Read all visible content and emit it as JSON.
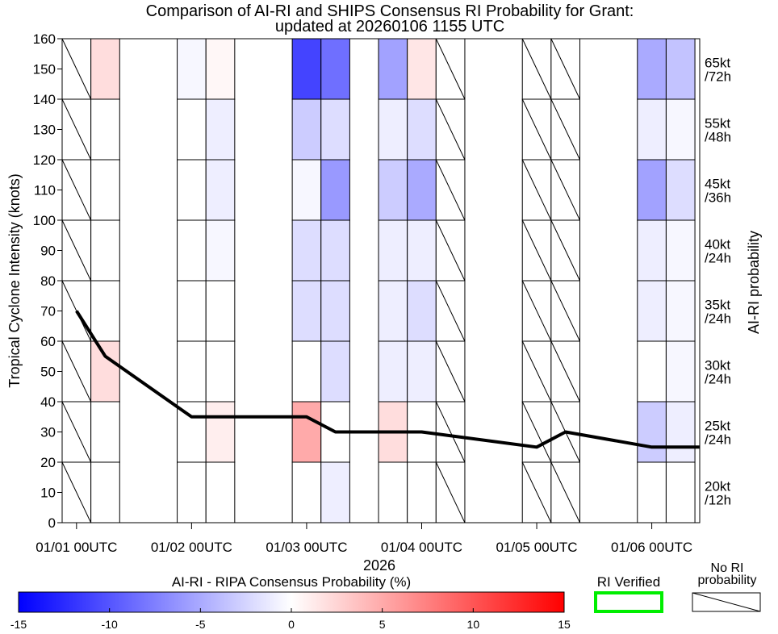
{
  "chart_data": {
    "type": "heatmap",
    "title": "Comparison of AI-RI and SHIPS Consensus RI Probability for Grant:",
    "subtitle": "updated at 20260106 1155 UTC",
    "ylabel": "Tropical Cyclone Intensity (knots)",
    "right_label": "AI-RI probability",
    "xlabel": "2026",
    "ylim": [
      0,
      160
    ],
    "y_ticks": [
      0,
      10,
      20,
      30,
      40,
      50,
      60,
      70,
      80,
      90,
      100,
      110,
      120,
      130,
      140,
      150,
      160
    ],
    "x_ticks": [
      "01/01 00UTC",
      "01/02 00UTC",
      "01/03 00UTC",
      "01/04 00UTC",
      "01/05 00UTC",
      "01/06 00UTC"
    ],
    "x_tick_hours": [
      0,
      24,
      48,
      72,
      96,
      120
    ],
    "xlim_hours": [
      -3,
      130
    ],
    "thresholds": [
      {
        "label": "20kt",
        "window": "/12h",
        "band": [
          0,
          20
        ]
      },
      {
        "label": "25kt",
        "window": "/24h",
        "band": [
          20,
          40
        ]
      },
      {
        "label": "30kt",
        "window": "/24h",
        "band": [
          40,
          60
        ]
      },
      {
        "label": "35kt",
        "window": "/24h",
        "band": [
          60,
          80
        ]
      },
      {
        "label": "40kt",
        "window": "/24h",
        "band": [
          80,
          100
        ]
      },
      {
        "label": "45kt",
        "window": "/36h",
        "band": [
          100,
          120
        ]
      },
      {
        "label": "55kt",
        "window": "/48h",
        "band": [
          120,
          140
        ]
      },
      {
        "label": "65kt",
        "window": "/72h",
        "band": [
          140,
          160
        ]
      }
    ],
    "column_hours": [
      0,
      6,
      24,
      30,
      48,
      54,
      66,
      72,
      78,
      96,
      102,
      120,
      126
    ],
    "cells_note": "Each column holds 8 values (bottom 20kt/12h to top 65kt/72h); value = AI-RI minus RIPA consensus probability (%); null = No RI probability (hatched).",
    "cells": [
      [
        null,
        null,
        null,
        null,
        null,
        null,
        null,
        null
      ],
      [
        0,
        0,
        2,
        0,
        0,
        0,
        0,
        2
      ],
      [
        0,
        0,
        0,
        0,
        0,
        0,
        0,
        -0.5
      ],
      [
        0,
        1,
        0,
        0,
        -0.5,
        -1,
        -1,
        0.5
      ],
      [
        0,
        5,
        0,
        -2,
        -2,
        -0.5,
        -3,
        -11
      ],
      [
        -1,
        0,
        -2,
        -2,
        -2,
        -6,
        -2,
        -8.5
      ],
      [
        0,
        2,
        -1,
        -1,
        -1,
        -3,
        -1,
        -5.5
      ],
      [
        0,
        0,
        -1,
        -2,
        -1,
        -5,
        -2,
        1.5
      ],
      [
        null,
        null,
        null,
        null,
        null,
        null,
        null,
        null
      ],
      [
        null,
        null,
        null,
        null,
        null,
        null,
        null,
        null
      ],
      [
        null,
        null,
        null,
        null,
        null,
        null,
        null,
        null
      ],
      [
        0,
        -3,
        0,
        -1,
        -1,
        -5.5,
        -1,
        -5
      ],
      [
        0,
        -1,
        -0.5,
        -0.5,
        -0.5,
        -2,
        -0.5,
        -3.5
      ]
    ],
    "intensity_series": {
      "name": "Tropical Cyclone Intensity",
      "hours": [
        0,
        6,
        24,
        48,
        54,
        72,
        96,
        102,
        120,
        130
      ],
      "values": [
        70,
        55,
        35,
        35,
        30,
        30,
        25,
        30,
        25,
        25
      ]
    },
    "colorbar": {
      "label": "AI-RI - RIPA Consensus Probability (%)",
      "range": [
        -15,
        15
      ],
      "ticks": [
        "-15",
        "-10",
        "-5",
        "0",
        "5",
        "10",
        "15"
      ]
    },
    "legend": {
      "verified_label": "RI Verified",
      "verified_color": "#00ee00",
      "no_ri_label_line1": "No RI",
      "no_ri_label_line2": "probability"
    }
  }
}
